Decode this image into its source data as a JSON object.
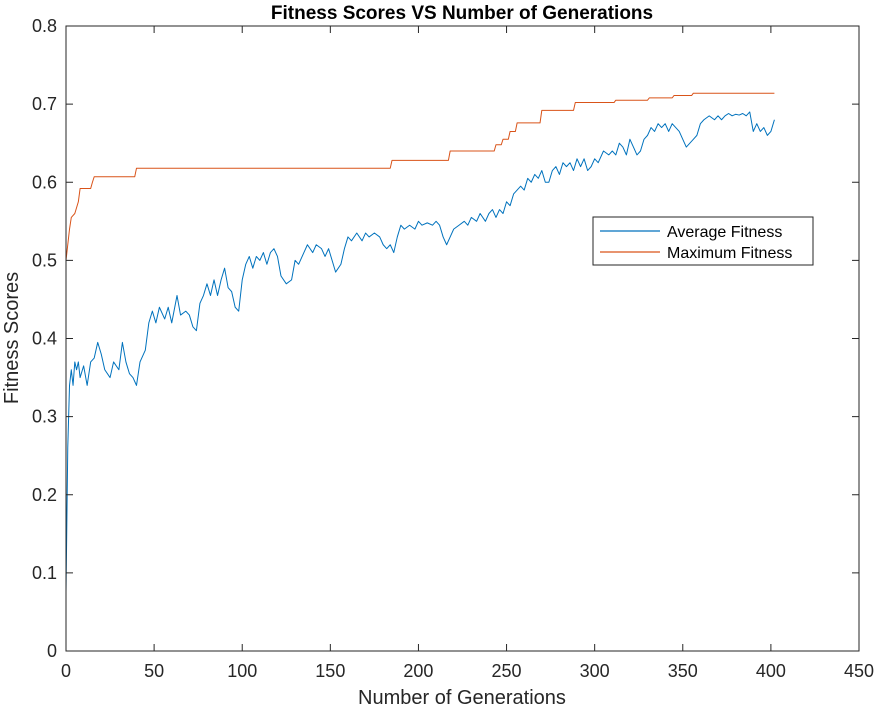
{
  "chart_data": {
    "type": "line",
    "title": "Fitness Scores VS Number of Generations",
    "xlabel": "Number of Generations",
    "ylabel": "Fitness Scores",
    "xlim": [
      0,
      450
    ],
    "ylim": [
      0,
      0.8
    ],
    "xticks": [
      "0",
      "50",
      "100",
      "150",
      "200",
      "250",
      "300",
      "350",
      "400",
      "450"
    ],
    "yticks": [
      "0",
      "0.1",
      "0.2",
      "0.3",
      "0.4",
      "0.5",
      "0.6",
      "0.7",
      "0.8"
    ],
    "grid": false,
    "legend": {
      "location": "right",
      "entries": [
        "Average Fitness",
        "Maximum Fitness"
      ]
    },
    "series": [
      {
        "name": "Average Fitness",
        "color": "#0072BD",
        "points": [
          [
            0,
            0.075
          ],
          [
            1,
            0.26
          ],
          [
            2,
            0.34
          ],
          [
            3,
            0.36
          ],
          [
            4,
            0.34
          ],
          [
            5,
            0.37
          ],
          [
            6,
            0.36
          ],
          [
            7,
            0.37
          ],
          [
            8,
            0.35
          ],
          [
            10,
            0.365
          ],
          [
            12,
            0.34
          ],
          [
            14,
            0.37
          ],
          [
            16,
            0.375
          ],
          [
            18,
            0.395
          ],
          [
            20,
            0.38
          ],
          [
            22,
            0.36
          ],
          [
            25,
            0.35
          ],
          [
            27,
            0.37
          ],
          [
            30,
            0.36
          ],
          [
            32,
            0.395
          ],
          [
            34,
            0.37
          ],
          [
            36,
            0.355
          ],
          [
            38,
            0.35
          ],
          [
            40,
            0.34
          ],
          [
            42,
            0.37
          ],
          [
            45,
            0.385
          ],
          [
            47,
            0.42
          ],
          [
            49,
            0.435
          ],
          [
            51,
            0.42
          ],
          [
            53,
            0.44
          ],
          [
            56,
            0.425
          ],
          [
            58,
            0.44
          ],
          [
            60,
            0.42
          ],
          [
            63,
            0.455
          ],
          [
            65,
            0.43
          ],
          [
            68,
            0.435
          ],
          [
            70,
            0.43
          ],
          [
            72,
            0.415
          ],
          [
            74,
            0.41
          ],
          [
            76,
            0.445
          ],
          [
            78,
            0.455
          ],
          [
            80,
            0.47
          ],
          [
            82,
            0.455
          ],
          [
            84,
            0.475
          ],
          [
            86,
            0.455
          ],
          [
            88,
            0.475
          ],
          [
            90,
            0.49
          ],
          [
            92,
            0.465
          ],
          [
            94,
            0.46
          ],
          [
            96,
            0.44
          ],
          [
            98,
            0.435
          ],
          [
            100,
            0.475
          ],
          [
            102,
            0.495
          ],
          [
            104,
            0.505
          ],
          [
            106,
            0.49
          ],
          [
            108,
            0.505
          ],
          [
            110,
            0.5
          ],
          [
            112,
            0.51
          ],
          [
            114,
            0.495
          ],
          [
            116,
            0.51
          ],
          [
            118,
            0.515
          ],
          [
            120,
            0.505
          ],
          [
            122,
            0.48
          ],
          [
            125,
            0.47
          ],
          [
            128,
            0.475
          ],
          [
            130,
            0.5
          ],
          [
            132,
            0.495
          ],
          [
            135,
            0.51
          ],
          [
            137,
            0.52
          ],
          [
            140,
            0.51
          ],
          [
            142,
            0.52
          ],
          [
            145,
            0.515
          ],
          [
            147,
            0.505
          ],
          [
            149,
            0.515
          ],
          [
            151,
            0.5
          ],
          [
            153,
            0.485
          ],
          [
            156,
            0.495
          ],
          [
            158,
            0.515
          ],
          [
            160,
            0.53
          ],
          [
            162,
            0.525
          ],
          [
            165,
            0.535
          ],
          [
            168,
            0.525
          ],
          [
            170,
            0.535
          ],
          [
            172,
            0.53
          ],
          [
            175,
            0.535
          ],
          [
            178,
            0.53
          ],
          [
            180,
            0.52
          ],
          [
            182,
            0.515
          ],
          [
            184,
            0.52
          ],
          [
            186,
            0.51
          ],
          [
            188,
            0.53
          ],
          [
            190,
            0.545
          ],
          [
            192,
            0.54
          ],
          [
            195,
            0.545
          ],
          [
            198,
            0.54
          ],
          [
            200,
            0.55
          ],
          [
            202,
            0.545
          ],
          [
            205,
            0.548
          ],
          [
            208,
            0.545
          ],
          [
            210,
            0.55
          ],
          [
            212,
            0.545
          ],
          [
            214,
            0.53
          ],
          [
            216,
            0.52
          ],
          [
            218,
            0.53
          ],
          [
            220,
            0.54
          ],
          [
            223,
            0.545
          ],
          [
            226,
            0.55
          ],
          [
            228,
            0.545
          ],
          [
            230,
            0.555
          ],
          [
            233,
            0.55
          ],
          [
            235,
            0.56
          ],
          [
            238,
            0.55
          ],
          [
            240,
            0.56
          ],
          [
            242,
            0.565
          ],
          [
            244,
            0.555
          ],
          [
            246,
            0.565
          ],
          [
            248,
            0.56
          ],
          [
            250,
            0.575
          ],
          [
            252,
            0.57
          ],
          [
            254,
            0.585
          ],
          [
            256,
            0.59
          ],
          [
            258,
            0.595
          ],
          [
            260,
            0.59
          ],
          [
            262,
            0.605
          ],
          [
            264,
            0.6
          ],
          [
            266,
            0.61
          ],
          [
            268,
            0.605
          ],
          [
            270,
            0.615
          ],
          [
            272,
            0.6
          ],
          [
            274,
            0.6
          ],
          [
            276,
            0.615
          ],
          [
            278,
            0.62
          ],
          [
            280,
            0.61
          ],
          [
            282,
            0.625
          ],
          [
            284,
            0.62
          ],
          [
            286,
            0.625
          ],
          [
            288,
            0.615
          ],
          [
            290,
            0.63
          ],
          [
            292,
            0.62
          ],
          [
            294,
            0.63
          ],
          [
            296,
            0.615
          ],
          [
            298,
            0.62
          ],
          [
            300,
            0.63
          ],
          [
            302,
            0.625
          ],
          [
            305,
            0.64
          ],
          [
            308,
            0.635
          ],
          [
            310,
            0.64
          ],
          [
            312,
            0.635
          ],
          [
            314,
            0.65
          ],
          [
            316,
            0.645
          ],
          [
            318,
            0.635
          ],
          [
            320,
            0.655
          ],
          [
            322,
            0.645
          ],
          [
            324,
            0.635
          ],
          [
            326,
            0.64
          ],
          [
            328,
            0.655
          ],
          [
            330,
            0.66
          ],
          [
            332,
            0.67
          ],
          [
            334,
            0.665
          ],
          [
            336,
            0.675
          ],
          [
            338,
            0.67
          ],
          [
            340,
            0.675
          ],
          [
            342,
            0.665
          ],
          [
            344,
            0.675
          ],
          [
            346,
            0.67
          ],
          [
            348,
            0.665
          ],
          [
            350,
            0.655
          ],
          [
            352,
            0.645
          ],
          [
            354,
            0.65
          ],
          [
            356,
            0.655
          ],
          [
            358,
            0.66
          ],
          [
            360,
            0.675
          ],
          [
            362,
            0.68
          ],
          [
            365,
            0.685
          ],
          [
            368,
            0.68
          ],
          [
            370,
            0.685
          ],
          [
            372,
            0.68
          ],
          [
            374,
            0.685
          ],
          [
            376,
            0.688
          ],
          [
            378,
            0.685
          ],
          [
            380,
            0.687
          ],
          [
            382,
            0.686
          ],
          [
            384,
            0.688
          ],
          [
            386,
            0.685
          ],
          [
            388,
            0.69
          ],
          [
            390,
            0.665
          ],
          [
            392,
            0.675
          ],
          [
            394,
            0.665
          ],
          [
            396,
            0.67
          ],
          [
            398,
            0.66
          ],
          [
            400,
            0.665
          ],
          [
            402,
            0.68
          ]
        ]
      },
      {
        "name": "Maximum Fitness",
        "color": "#D95319",
        "points": [
          [
            0,
            0.5
          ],
          [
            2,
            0.54
          ],
          [
            3,
            0.555
          ],
          [
            5,
            0.56
          ],
          [
            7,
            0.575
          ],
          [
            8,
            0.592
          ],
          [
            14,
            0.592
          ],
          [
            15,
            0.6
          ],
          [
            16,
            0.607
          ],
          [
            39,
            0.607
          ],
          [
            40,
            0.618
          ],
          [
            184,
            0.618
          ],
          [
            185,
            0.628
          ],
          [
            217,
            0.628
          ],
          [
            218,
            0.64
          ],
          [
            243,
            0.64
          ],
          [
            244,
            0.648
          ],
          [
            247,
            0.648
          ],
          [
            248,
            0.655
          ],
          [
            251,
            0.655
          ],
          [
            252,
            0.665
          ],
          [
            255,
            0.665
          ],
          [
            256,
            0.676
          ],
          [
            269,
            0.676
          ],
          [
            270,
            0.692
          ],
          [
            288,
            0.692
          ],
          [
            289,
            0.702
          ],
          [
            311,
            0.702
          ],
          [
            312,
            0.705
          ],
          [
            330,
            0.705
          ],
          [
            331,
            0.708
          ],
          [
            344,
            0.708
          ],
          [
            345,
            0.711
          ],
          [
            355,
            0.711
          ],
          [
            356,
            0.714
          ],
          [
            402,
            0.714
          ]
        ]
      }
    ]
  }
}
